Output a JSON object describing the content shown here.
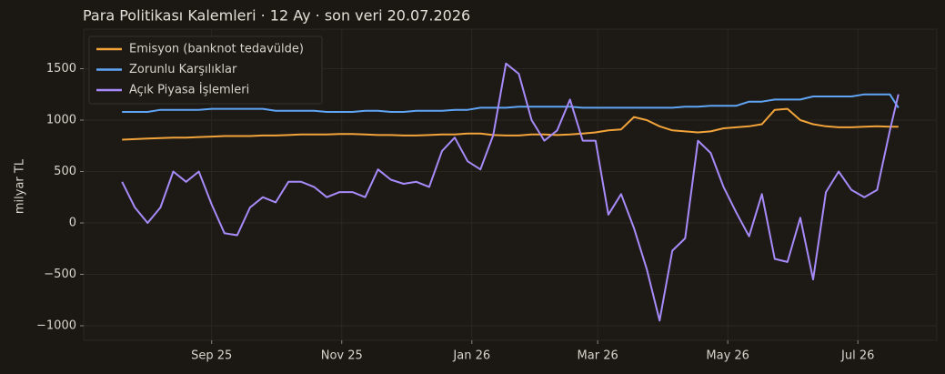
{
  "chart_data": {
    "type": "line",
    "title": "Para Politikası Kalemleri · 12 Ay · son veri 20.07.2026",
    "y_label": "milyar TL",
    "x": [
      -42,
      -36,
      -30,
      -24,
      -18,
      -12,
      -6,
      0,
      6,
      12,
      18,
      24,
      30,
      36,
      42,
      48,
      54,
      60,
      66,
      72,
      78,
      84,
      90,
      96,
      102,
      108,
      114,
      120,
      126,
      132,
      138,
      144,
      150,
      156,
      162,
      168,
      174,
      180,
      186,
      192,
      198,
      204,
      210,
      216,
      222,
      228,
      234,
      240,
      246,
      252,
      258,
      264,
      270,
      276,
      282,
      288,
      294,
      300,
      306,
      312,
      318,
      322
    ],
    "xlim": [
      -60,
      340
    ],
    "xticks": [
      {
        "value": 0,
        "label": "Sep 25"
      },
      {
        "value": 61,
        "label": "Nov 25"
      },
      {
        "value": 122,
        "label": "Jan 26"
      },
      {
        "value": 181,
        "label": "Mar 26"
      },
      {
        "value": 242,
        "label": "May 26"
      },
      {
        "value": 303,
        "label": "Jul 26"
      }
    ],
    "ylim": [
      -1142,
      1885
    ],
    "yticks": [
      {
        "value": -1000,
        "label": "−1000"
      },
      {
        "value": -500,
        "label": "−500"
      },
      0,
      500,
      1000,
      1500
    ],
    "grid": true,
    "legend": "upper left",
    "series": [
      {
        "name": "Emisyon (banknot tedavülde)",
        "color": "#f2a43a",
        "values": [
          810,
          815,
          820,
          825,
          830,
          830,
          835,
          840,
          845,
          845,
          845,
          850,
          850,
          855,
          860,
          860,
          860,
          865,
          865,
          860,
          855,
          855,
          850,
          850,
          855,
          860,
          860,
          870,
          870,
          855,
          850,
          850,
          860,
          860,
          855,
          860,
          870,
          880,
          900,
          910,
          1030,
          1000,
          940,
          900,
          890,
          880,
          890,
          920,
          930,
          940,
          960,
          1100,
          1110,
          1000,
          960,
          940,
          930,
          930,
          935,
          940,
          935,
          935
        ]
      },
      {
        "name": "Zorunlu Karşılıklar",
        "color": "#60a5f5",
        "values": [
          1080,
          1080,
          1080,
          1100,
          1100,
          1100,
          1100,
          1110,
          1110,
          1110,
          1110,
          1110,
          1090,
          1090,
          1090,
          1090,
          1080,
          1080,
          1080,
          1090,
          1090,
          1080,
          1080,
          1090,
          1090,
          1090,
          1100,
          1100,
          1120,
          1120,
          1120,
          1130,
          1130,
          1130,
          1130,
          1130,
          1120,
          1120,
          1120,
          1120,
          1120,
          1120,
          1120,
          1120,
          1130,
          1130,
          1140,
          1140,
          1140,
          1180,
          1180,
          1200,
          1200,
          1200,
          1230,
          1230,
          1230,
          1230,
          1250,
          1250,
          1250,
          1120
        ]
      },
      {
        "name": "Açık Piyasa İşlemleri",
        "color": "#a78bfa",
        "values": [
          400,
          150,
          0,
          150,
          500,
          400,
          500,
          180,
          -100,
          -120,
          150,
          250,
          200,
          400,
          400,
          350,
          250,
          300,
          300,
          250,
          520,
          420,
          380,
          400,
          350,
          700,
          830,
          600,
          520,
          850,
          1550,
          1450,
          1000,
          800,
          900,
          1200,
          800,
          800,
          80,
          280,
          -50,
          -450,
          -950,
          -270,
          -150,
          800,
          680,
          350,
          100,
          -130,
          280,
          -350,
          -380,
          50,
          -550,
          300,
          500,
          320,
          250,
          320,
          900,
          1250
        ]
      }
    ]
  }
}
